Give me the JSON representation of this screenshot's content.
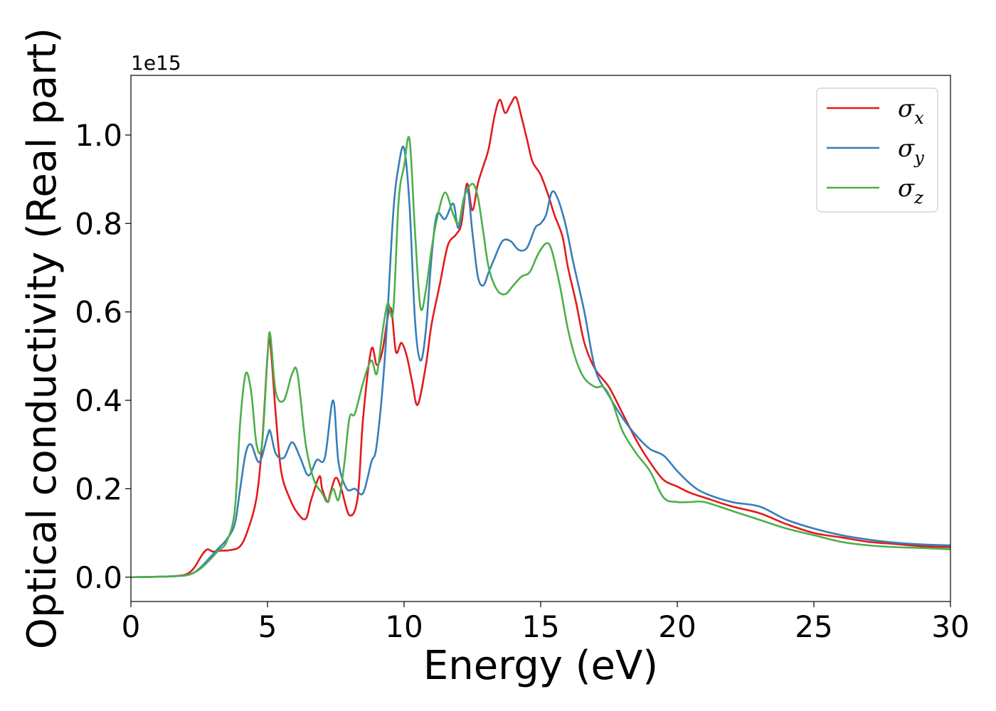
{
  "chart_data": {
    "type": "line",
    "xlabel": "Energy (eV)",
    "ylabel": "Optical conductivity (Real part)",
    "y_offset_label": "1e15",
    "xlim": [
      0,
      30
    ],
    "ylim": [
      -0.055,
      1.135
    ],
    "x_ticks": [
      0,
      5,
      10,
      15,
      20,
      25,
      30
    ],
    "x_tick_labels": [
      "0",
      "5",
      "10",
      "15",
      "20",
      "25",
      "30"
    ],
    "y_ticks": [
      0.0,
      0.2,
      0.4,
      0.6,
      0.8,
      1.0
    ],
    "y_tick_labels": [
      "0.0",
      "0.2",
      "0.4",
      "0.6",
      "0.8",
      "1.0"
    ],
    "legend_position": "top-right",
    "grid": false,
    "series": [
      {
        "name": "σx",
        "symbol": "σ",
        "subscript": "x",
        "color": "#e41a1c",
        "x": [
          0,
          1,
          1.5,
          2,
          2.3,
          2.6,
          2.8,
          3.0,
          3.3,
          3.6,
          4.0,
          4.3,
          4.6,
          4.8,
          5.0,
          5.1,
          5.3,
          5.5,
          5.8,
          6.1,
          6.4,
          6.6,
          6.9,
          7.0,
          7.2,
          7.3,
          7.5,
          7.7,
          8.0,
          8.3,
          8.5,
          8.8,
          9.0,
          9.2,
          9.5,
          9.7,
          9.9,
          10.1,
          10.3,
          10.5,
          10.8,
          11.0,
          11.3,
          11.6,
          11.9,
          12.1,
          12.3,
          12.5,
          12.7,
          12.9,
          13.1,
          13.3,
          13.5,
          13.7,
          13.9,
          14.1,
          14.3,
          14.5,
          14.7,
          15.0,
          15.3,
          15.5,
          15.8,
          16.0,
          16.3,
          16.6,
          17.0,
          17.5,
          18.0,
          18.5,
          19.0,
          19.5,
          20.0,
          20.5,
          21.0,
          22.0,
          23.0,
          24.0,
          25.0,
          26.0,
          27.0,
          28.0,
          29.0,
          30.0
        ],
        "y": [
          0,
          0.001,
          0.002,
          0.006,
          0.02,
          0.05,
          0.063,
          0.058,
          0.06,
          0.061,
          0.07,
          0.11,
          0.18,
          0.3,
          0.5,
          0.53,
          0.37,
          0.24,
          0.18,
          0.145,
          0.132,
          0.175,
          0.228,
          0.2,
          0.17,
          0.19,
          0.225,
          0.2,
          0.14,
          0.18,
          0.36,
          0.515,
          0.48,
          0.51,
          0.61,
          0.51,
          0.53,
          0.5,
          0.44,
          0.39,
          0.48,
          0.57,
          0.66,
          0.75,
          0.775,
          0.8,
          0.89,
          0.83,
          0.89,
          0.93,
          0.97,
          1.04,
          1.08,
          1.05,
          1.07,
          1.085,
          1.04,
          0.99,
          0.94,
          0.91,
          0.86,
          0.82,
          0.77,
          0.7,
          0.62,
          0.53,
          0.47,
          0.43,
          0.37,
          0.31,
          0.26,
          0.22,
          0.205,
          0.19,
          0.18,
          0.16,
          0.145,
          0.12,
          0.1,
          0.09,
          0.08,
          0.075,
          0.07,
          0.068
        ]
      },
      {
        "name": "σy",
        "symbol": "σ",
        "subscript": "y",
        "color": "#377eb8",
        "x": [
          0,
          1,
          1.5,
          2,
          2.3,
          2.6,
          2.9,
          3.2,
          3.5,
          3.8,
          4.0,
          4.2,
          4.4,
          4.7,
          5.0,
          5.1,
          5.3,
          5.6,
          5.9,
          6.2,
          6.5,
          6.8,
          7.1,
          7.4,
          7.6,
          7.9,
          8.2,
          8.5,
          8.8,
          9.0,
          9.3,
          9.6,
          9.8,
          10.0,
          10.2,
          10.4,
          10.6,
          10.8,
          11.0,
          11.2,
          11.5,
          11.8,
          12.0,
          12.3,
          12.5,
          12.7,
          12.9,
          13.1,
          13.3,
          13.6,
          13.9,
          14.2,
          14.5,
          14.8,
          15.0,
          15.2,
          15.4,
          15.6,
          15.9,
          16.2,
          16.6,
          17.0,
          17.5,
          18.0,
          18.5,
          19.0,
          19.5,
          20.0,
          20.5,
          21.0,
          22.0,
          23.0,
          24.0,
          25.0,
          26.0,
          27.0,
          28.0,
          29.0,
          30.0
        ],
        "y": [
          0,
          0.001,
          0.002,
          0.004,
          0.01,
          0.025,
          0.045,
          0.065,
          0.085,
          0.12,
          0.2,
          0.28,
          0.3,
          0.26,
          0.32,
          0.33,
          0.28,
          0.27,
          0.305,
          0.27,
          0.23,
          0.265,
          0.27,
          0.4,
          0.26,
          0.2,
          0.2,
          0.19,
          0.26,
          0.3,
          0.5,
          0.82,
          0.93,
          0.97,
          0.84,
          0.58,
          0.49,
          0.56,
          0.72,
          0.82,
          0.81,
          0.845,
          0.79,
          0.88,
          0.78,
          0.68,
          0.66,
          0.69,
          0.72,
          0.76,
          0.76,
          0.74,
          0.745,
          0.79,
          0.8,
          0.82,
          0.87,
          0.86,
          0.8,
          0.71,
          0.6,
          0.47,
          0.41,
          0.36,
          0.32,
          0.29,
          0.275,
          0.24,
          0.21,
          0.19,
          0.17,
          0.16,
          0.13,
          0.11,
          0.095,
          0.085,
          0.078,
          0.074,
          0.072
        ]
      },
      {
        "name": "σz",
        "symbol": "σ",
        "subscript": "z",
        "color": "#4daf4a",
        "x": [
          0,
          1,
          1.5,
          2,
          2.3,
          2.6,
          2.9,
          3.2,
          3.5,
          3.8,
          4.0,
          4.2,
          4.4,
          4.6,
          4.8,
          5.0,
          5.1,
          5.3,
          5.6,
          5.9,
          6.1,
          6.4,
          6.7,
          7.0,
          7.2,
          7.4,
          7.6,
          7.8,
          8.0,
          8.2,
          8.5,
          8.8,
          9.0,
          9.2,
          9.4,
          9.6,
          9.8,
          10.0,
          10.2,
          10.4,
          10.6,
          10.8,
          11.0,
          11.2,
          11.5,
          11.8,
          12.0,
          12.2,
          12.5,
          12.7,
          12.9,
          13.1,
          13.4,
          13.7,
          14.0,
          14.3,
          14.6,
          14.9,
          15.2,
          15.4,
          15.7,
          16.0,
          16.3,
          16.6,
          17.0,
          17.3,
          17.6,
          18.0,
          18.5,
          19.0,
          19.5,
          20.0,
          20.5,
          21.0,
          22.0,
          23.0,
          24.0,
          25.0,
          26.0,
          27.0,
          28.0,
          29.0,
          30.0
        ],
        "y": [
          0,
          0.001,
          0.002,
          0.004,
          0.01,
          0.022,
          0.04,
          0.06,
          0.08,
          0.15,
          0.35,
          0.46,
          0.42,
          0.3,
          0.3,
          0.5,
          0.55,
          0.42,
          0.4,
          0.46,
          0.46,
          0.3,
          0.22,
          0.19,
          0.17,
          0.2,
          0.175,
          0.25,
          0.36,
          0.37,
          0.44,
          0.49,
          0.46,
          0.55,
          0.62,
          0.6,
          0.85,
          0.93,
          0.99,
          0.78,
          0.61,
          0.65,
          0.74,
          0.81,
          0.87,
          0.82,
          0.8,
          0.86,
          0.89,
          0.86,
          0.78,
          0.7,
          0.65,
          0.64,
          0.66,
          0.68,
          0.69,
          0.73,
          0.755,
          0.74,
          0.66,
          0.56,
          0.49,
          0.45,
          0.43,
          0.43,
          0.4,
          0.33,
          0.28,
          0.24,
          0.18,
          0.17,
          0.17,
          0.17,
          0.15,
          0.13,
          0.11,
          0.095,
          0.08,
          0.072,
          0.068,
          0.066,
          0.063
        ]
      }
    ]
  }
}
